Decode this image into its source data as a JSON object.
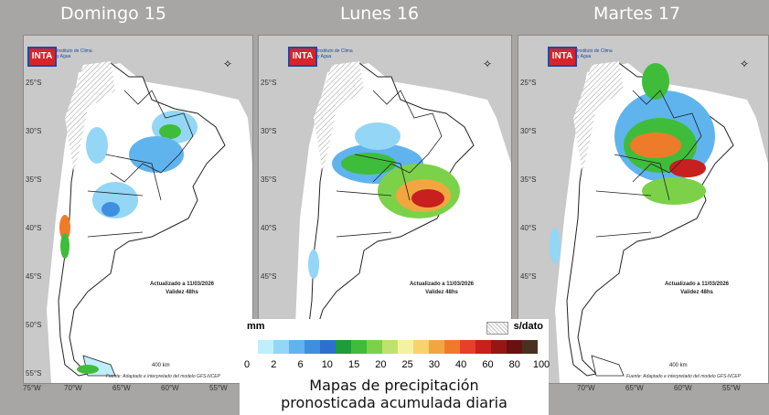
{
  "days": [
    {
      "title": "Domingo 15"
    },
    {
      "title": "Lunes 16"
    },
    {
      "title": "Martes 17"
    }
  ],
  "map_common": {
    "logo_text": "INTA",
    "logo_subtitle": "Instituto de Clima y Agua",
    "latitudes": [
      "25°S",
      "30°S",
      "35°S",
      "40°S",
      "45°S",
      "50°S",
      "55°S"
    ],
    "longitudes": [
      "75°W",
      "70°W",
      "65°W",
      "60°W",
      "55°W"
    ],
    "updated": "Actualizado a 11/03/2026",
    "validity": "Validez 48hs",
    "scale_label": "400 km",
    "source": "Fuente: Adaptado e interpretado del modelo GFS-NCEP",
    "north_symbol": "N"
  },
  "legend": {
    "unit": "mm",
    "no_data": "s/dato",
    "ticks": [
      "0",
      "2",
      "6",
      "10",
      "15",
      "20",
      "25",
      "30",
      "40",
      "60",
      "80",
      "100"
    ],
    "colors": [
      "#bfeefc",
      "#94d6f5",
      "#5fb4ee",
      "#3e8fe0",
      "#2f6fd0",
      "#1e9b3a",
      "#3fbd3a",
      "#7bd248",
      "#bfe36a",
      "#f4f2a0",
      "#f8d26a",
      "#f2a640",
      "#ee7b2a",
      "#e6402a",
      "#c8201e",
      "#961616",
      "#6a1010",
      "#4a3020"
    ]
  },
  "caption": {
    "line1": "Mapas de precipitación",
    "line2": "pronosticada acumulada diaria"
  }
}
